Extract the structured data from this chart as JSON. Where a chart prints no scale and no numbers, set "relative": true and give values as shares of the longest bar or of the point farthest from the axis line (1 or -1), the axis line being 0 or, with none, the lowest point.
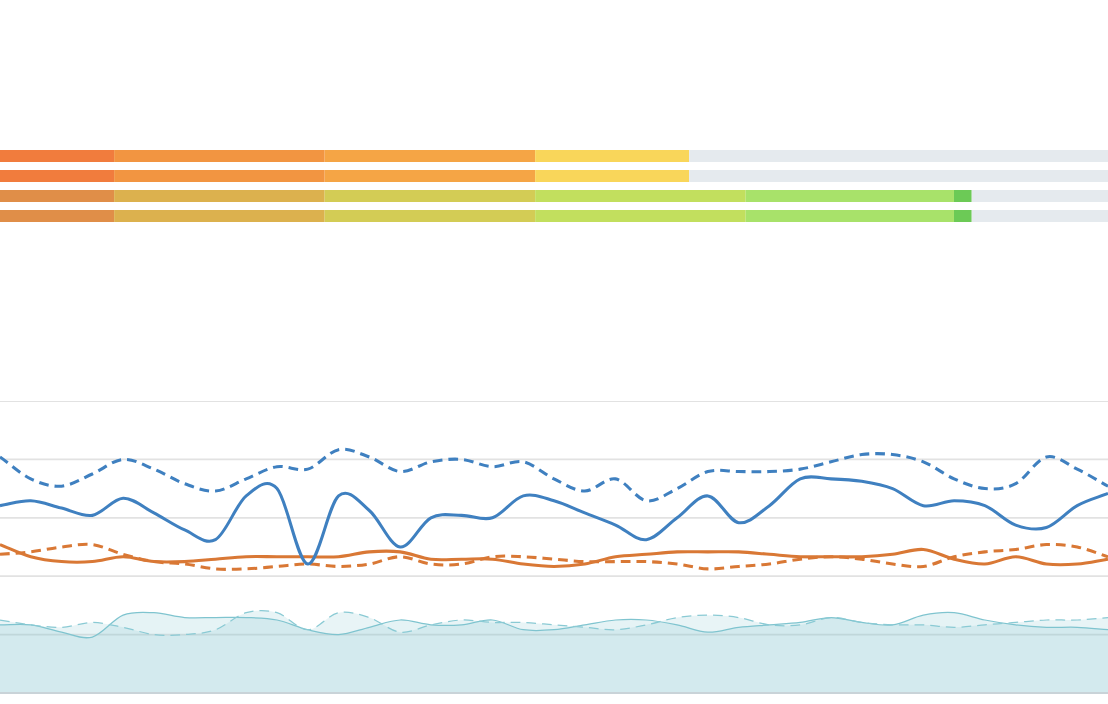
{
  "chart_data": [
    {
      "type": "bar",
      "orientation": "horizontal",
      "stacked": true,
      "relative": true,
      "categories": [
        null,
        null,
        null,
        null
      ],
      "series": [
        {
          "colors": [
            "#f17c3d",
            "#f17c3d",
            "#e08e48",
            "#e08e48"
          ],
          "values": [
            0.103,
            0.103,
            0.103,
            0.103
          ]
        },
        {
          "colors": [
            "#f29541",
            "#f29541",
            "#dcb14e",
            "#dcb14e"
          ],
          "values": [
            0.19,
            0.19,
            0.19,
            0.19
          ]
        },
        {
          "colors": [
            "#f5a545",
            "#f5a545",
            "#d3cc55",
            "#d3cc55"
          ],
          "values": [
            0.19,
            0.19,
            0.19,
            0.19
          ]
        },
        {
          "colors": [
            "#f9d65a",
            "#f9d65a",
            "#c2df5e",
            "#c2df5e"
          ],
          "values": [
            0.139,
            0.139,
            0.19,
            0.19
          ]
        },
        {
          "colors": [
            null,
            null,
            "#a8e26a",
            "#a8e26a"
          ],
          "values": [
            null,
            null,
            0.188,
            0.188
          ]
        },
        {
          "colors": [
            null,
            null,
            "#6cca56",
            "#6cca56"
          ],
          "values": [
            null,
            null,
            0.016,
            0.016
          ]
        },
        {
          "colors": [
            "#e5eaee",
            "#e5eaee",
            "#e5eaee",
            "#e5eaee"
          ],
          "values": [
            0.378,
            0.378,
            0.123,
            0.123
          ]
        }
      ]
    },
    {
      "type": "line",
      "relative": true,
      "grid": "y",
      "categories": [
        null,
        null,
        null,
        null,
        null,
        null,
        null,
        null,
        null,
        null,
        null,
        null,
        null,
        null,
        null,
        null,
        null,
        null,
        null,
        null,
        null,
        null,
        null,
        null,
        null,
        null,
        null,
        null,
        null,
        null,
        null,
        null,
        null,
        null,
        null,
        null,
        null
      ],
      "series": [
        {
          "type": "area",
          "color": "#7fc4cf",
          "line_style": "solid",
          "values": [
            0.28,
            0.28,
            0.25,
            0.23,
            0.32,
            0.33,
            0.31,
            0.31,
            0.31,
            0.3,
            0.26,
            0.24,
            0.27,
            0.3,
            0.28,
            0.28,
            0.3,
            0.26,
            0.26,
            0.28,
            0.3,
            0.3,
            0.28,
            0.25,
            0.27,
            0.28,
            0.29,
            0.31,
            0.29,
            0.28,
            0.32,
            0.33,
            0.3,
            0.28,
            0.27,
            0.27,
            0.26
          ]
        },
        {
          "type": "area",
          "color": "#8acad4",
          "line_style": "dashed",
          "values": [
            0.3,
            0.28,
            0.27,
            0.29,
            0.27,
            0.24,
            0.24,
            0.26,
            0.33,
            0.33,
            0.26,
            0.33,
            0.31,
            0.25,
            0.28,
            0.3,
            0.29,
            0.29,
            0.28,
            0.27,
            0.26,
            0.28,
            0.31,
            0.32,
            0.31,
            0.28,
            0.28,
            0.31,
            0.29,
            0.28,
            0.28,
            0.27,
            0.28,
            0.29,
            0.3,
            0.3,
            0.31
          ]
        },
        {
          "color": "#d97835",
          "line_style": "dashed",
          "values": [
            0.57,
            0.58,
            0.6,
            0.61,
            0.57,
            0.54,
            0.53,
            0.51,
            0.51,
            0.52,
            0.53,
            0.52,
            0.53,
            0.56,
            0.53,
            0.53,
            0.56,
            0.56,
            0.55,
            0.54,
            0.54,
            0.54,
            0.53,
            0.51,
            0.52,
            0.53,
            0.55,
            0.56,
            0.55,
            0.53,
            0.52,
            0.56,
            0.58,
            0.59,
            0.61,
            0.6,
            0.56
          ]
        },
        {
          "color": "#d97835",
          "line_style": "solid",
          "values": [
            0.61,
            0.56,
            0.54,
            0.54,
            0.56,
            0.54,
            0.54,
            0.55,
            0.56,
            0.56,
            0.56,
            0.56,
            0.58,
            0.58,
            0.55,
            0.55,
            0.55,
            0.53,
            0.52,
            0.53,
            0.56,
            0.57,
            0.58,
            0.58,
            0.58,
            0.57,
            0.56,
            0.56,
            0.56,
            0.57,
            0.59,
            0.55,
            0.53,
            0.56,
            0.53,
            0.53,
            0.55
          ]
        },
        {
          "color": "#3f80c0",
          "line_style": "dashed",
          "values": [
            0.97,
            0.88,
            0.85,
            0.9,
            0.96,
            0.92,
            0.86,
            0.83,
            0.88,
            0.93,
            0.92,
            1,
            0.97,
            0.91,
            0.95,
            0.96,
            0.93,
            0.95,
            0.88,
            0.83,
            0.88,
            0.79,
            0.84,
            0.91,
            0.91,
            0.91,
            0.92,
            0.95,
            0.98,
            0.98,
            0.95,
            0.88,
            0.84,
            0.86,
            0.97,
            0.92,
            0.85
          ]
        },
        {
          "color": "#3f80c0",
          "line_style": "solid",
          "values": [
            0.77,
            0.79,
            0.76,
            0.73,
            0.8,
            0.74,
            0.67,
            0.63,
            0.81,
            0.84,
            0.53,
            0.81,
            0.75,
            0.6,
            0.72,
            0.73,
            0.72,
            0.81,
            0.79,
            0.74,
            0.69,
            0.63,
            0.72,
            0.81,
            0.7,
            0.77,
            0.88,
            0.88,
            0.87,
            0.84,
            0.77,
            0.79,
            0.77,
            0.69,
            0.68,
            0.77,
            0.82
          ]
        }
      ]
    }
  ]
}
